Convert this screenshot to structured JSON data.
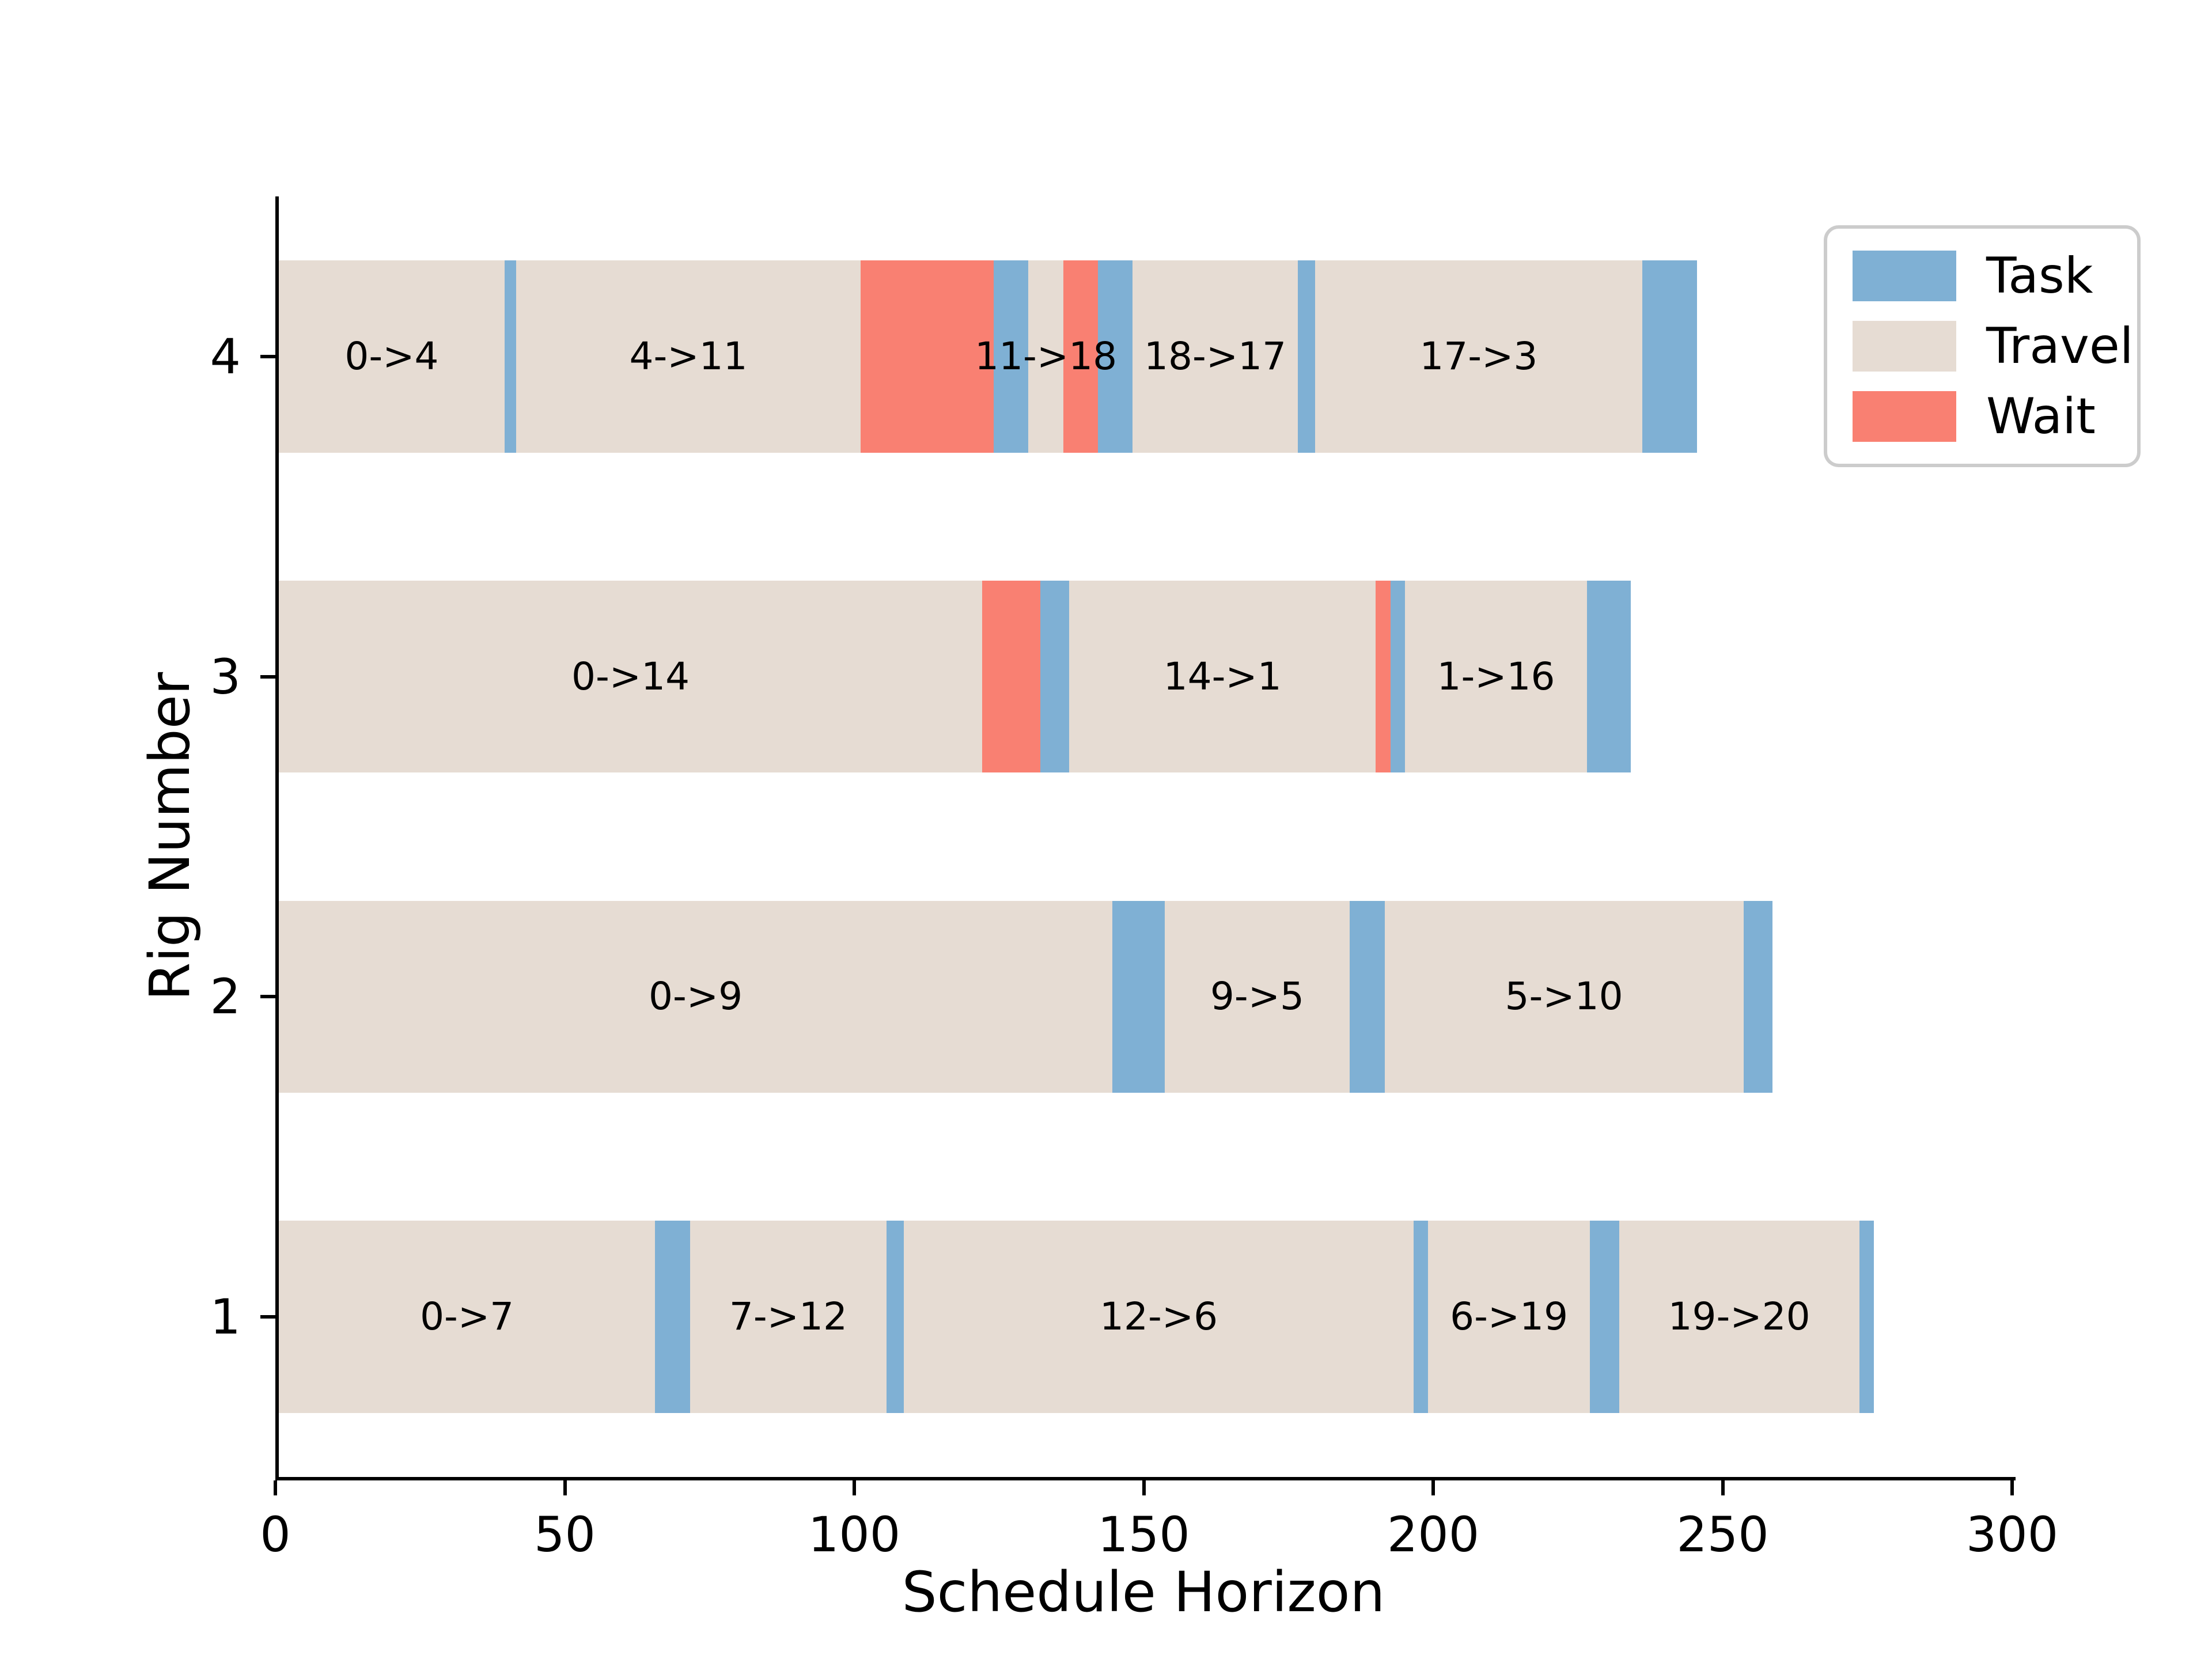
{
  "chart_data": {
    "type": "bar",
    "variant": "gantt-horizontal",
    "title": "",
    "xlabel": "Schedule Horizon",
    "ylabel": "Rig Number",
    "xlim": [
      0,
      300
    ],
    "ylim": [
      0.5,
      4.5
    ],
    "xticks": [
      "0",
      "50",
      "100",
      "150",
      "200",
      "250",
      "300"
    ],
    "yticks": [
      "1",
      "2",
      "3",
      "4"
    ],
    "grid": false,
    "bar_height_units": 0.6,
    "colors": {
      "task": "#7FB0D4",
      "travel": "#E6DCD3",
      "wait": "#F98072"
    },
    "legend": {
      "position": "upper right",
      "items": [
        {
          "label": "Task",
          "kind": "task"
        },
        {
          "label": "Travel",
          "kind": "travel"
        },
        {
          "label": "Wait",
          "kind": "wait"
        }
      ]
    },
    "rigs": [
      {
        "rig": 1,
        "segments": [
          {
            "kind": "travel",
            "start": 0,
            "end": 65,
            "label": "0->7"
          },
          {
            "kind": "task",
            "start": 65,
            "end": 71
          },
          {
            "kind": "travel",
            "start": 71,
            "end": 105,
            "label": "7->12"
          },
          {
            "kind": "task",
            "start": 105,
            "end": 108
          },
          {
            "kind": "travel",
            "start": 108,
            "end": 196,
            "label": "12->6"
          },
          {
            "kind": "task",
            "start": 196,
            "end": 198.5
          },
          {
            "kind": "travel",
            "start": 198.5,
            "end": 226.5,
            "label": "6->19"
          },
          {
            "kind": "task",
            "start": 226.5,
            "end": 231.5
          },
          {
            "kind": "travel",
            "start": 231.5,
            "end": 273,
            "label": "19->20"
          },
          {
            "kind": "task",
            "start": 273,
            "end": 275.5
          }
        ]
      },
      {
        "rig": 2,
        "segments": [
          {
            "kind": "travel",
            "start": 0,
            "end": 144,
            "label": "0->9"
          },
          {
            "kind": "task",
            "start": 144,
            "end": 153
          },
          {
            "kind": "travel",
            "start": 153,
            "end": 185,
            "label": "9->5"
          },
          {
            "kind": "task",
            "start": 185,
            "end": 191
          },
          {
            "kind": "travel",
            "start": 191,
            "end": 253,
            "label": "5->10"
          },
          {
            "kind": "task",
            "start": 253,
            "end": 258
          }
        ]
      },
      {
        "rig": 3,
        "segments": [
          {
            "kind": "travel",
            "start": 0,
            "end": 121.5,
            "label": "0->14"
          },
          {
            "kind": "wait",
            "start": 121.5,
            "end": 131.5
          },
          {
            "kind": "task",
            "start": 131.5,
            "end": 136.5
          },
          {
            "kind": "travel",
            "start": 136.5,
            "end": 189.5,
            "label": "14->1"
          },
          {
            "kind": "wait",
            "start": 189.5,
            "end": 192
          },
          {
            "kind": "task",
            "start": 192,
            "end": 194.5
          },
          {
            "kind": "travel",
            "start": 194.5,
            "end": 226,
            "label": "1->16"
          },
          {
            "kind": "task",
            "start": 226,
            "end": 233.5
          }
        ]
      },
      {
        "rig": 4,
        "segments": [
          {
            "kind": "travel",
            "start": 0,
            "end": 39,
            "label": "0->4"
          },
          {
            "kind": "task",
            "start": 39,
            "end": 41
          },
          {
            "kind": "travel",
            "start": 41,
            "end": 100.5,
            "label": "4->11"
          },
          {
            "kind": "wait",
            "start": 100.5,
            "end": 123.5
          },
          {
            "kind": "task",
            "start": 123.5,
            "end": 129.5
          },
          {
            "kind": "travel",
            "start": 129.5,
            "end": 135.5,
            "label": "11->18"
          },
          {
            "kind": "wait",
            "start": 135.5,
            "end": 141.5
          },
          {
            "kind": "task",
            "start": 141.5,
            "end": 147.5
          },
          {
            "kind": "travel",
            "start": 147.5,
            "end": 176,
            "label": "18->17"
          },
          {
            "kind": "task",
            "start": 176,
            "end": 179
          },
          {
            "kind": "travel",
            "start": 179,
            "end": 235.5,
            "label": "17->3"
          },
          {
            "kind": "task",
            "start": 235.5,
            "end": 245
          }
        ]
      }
    ]
  }
}
